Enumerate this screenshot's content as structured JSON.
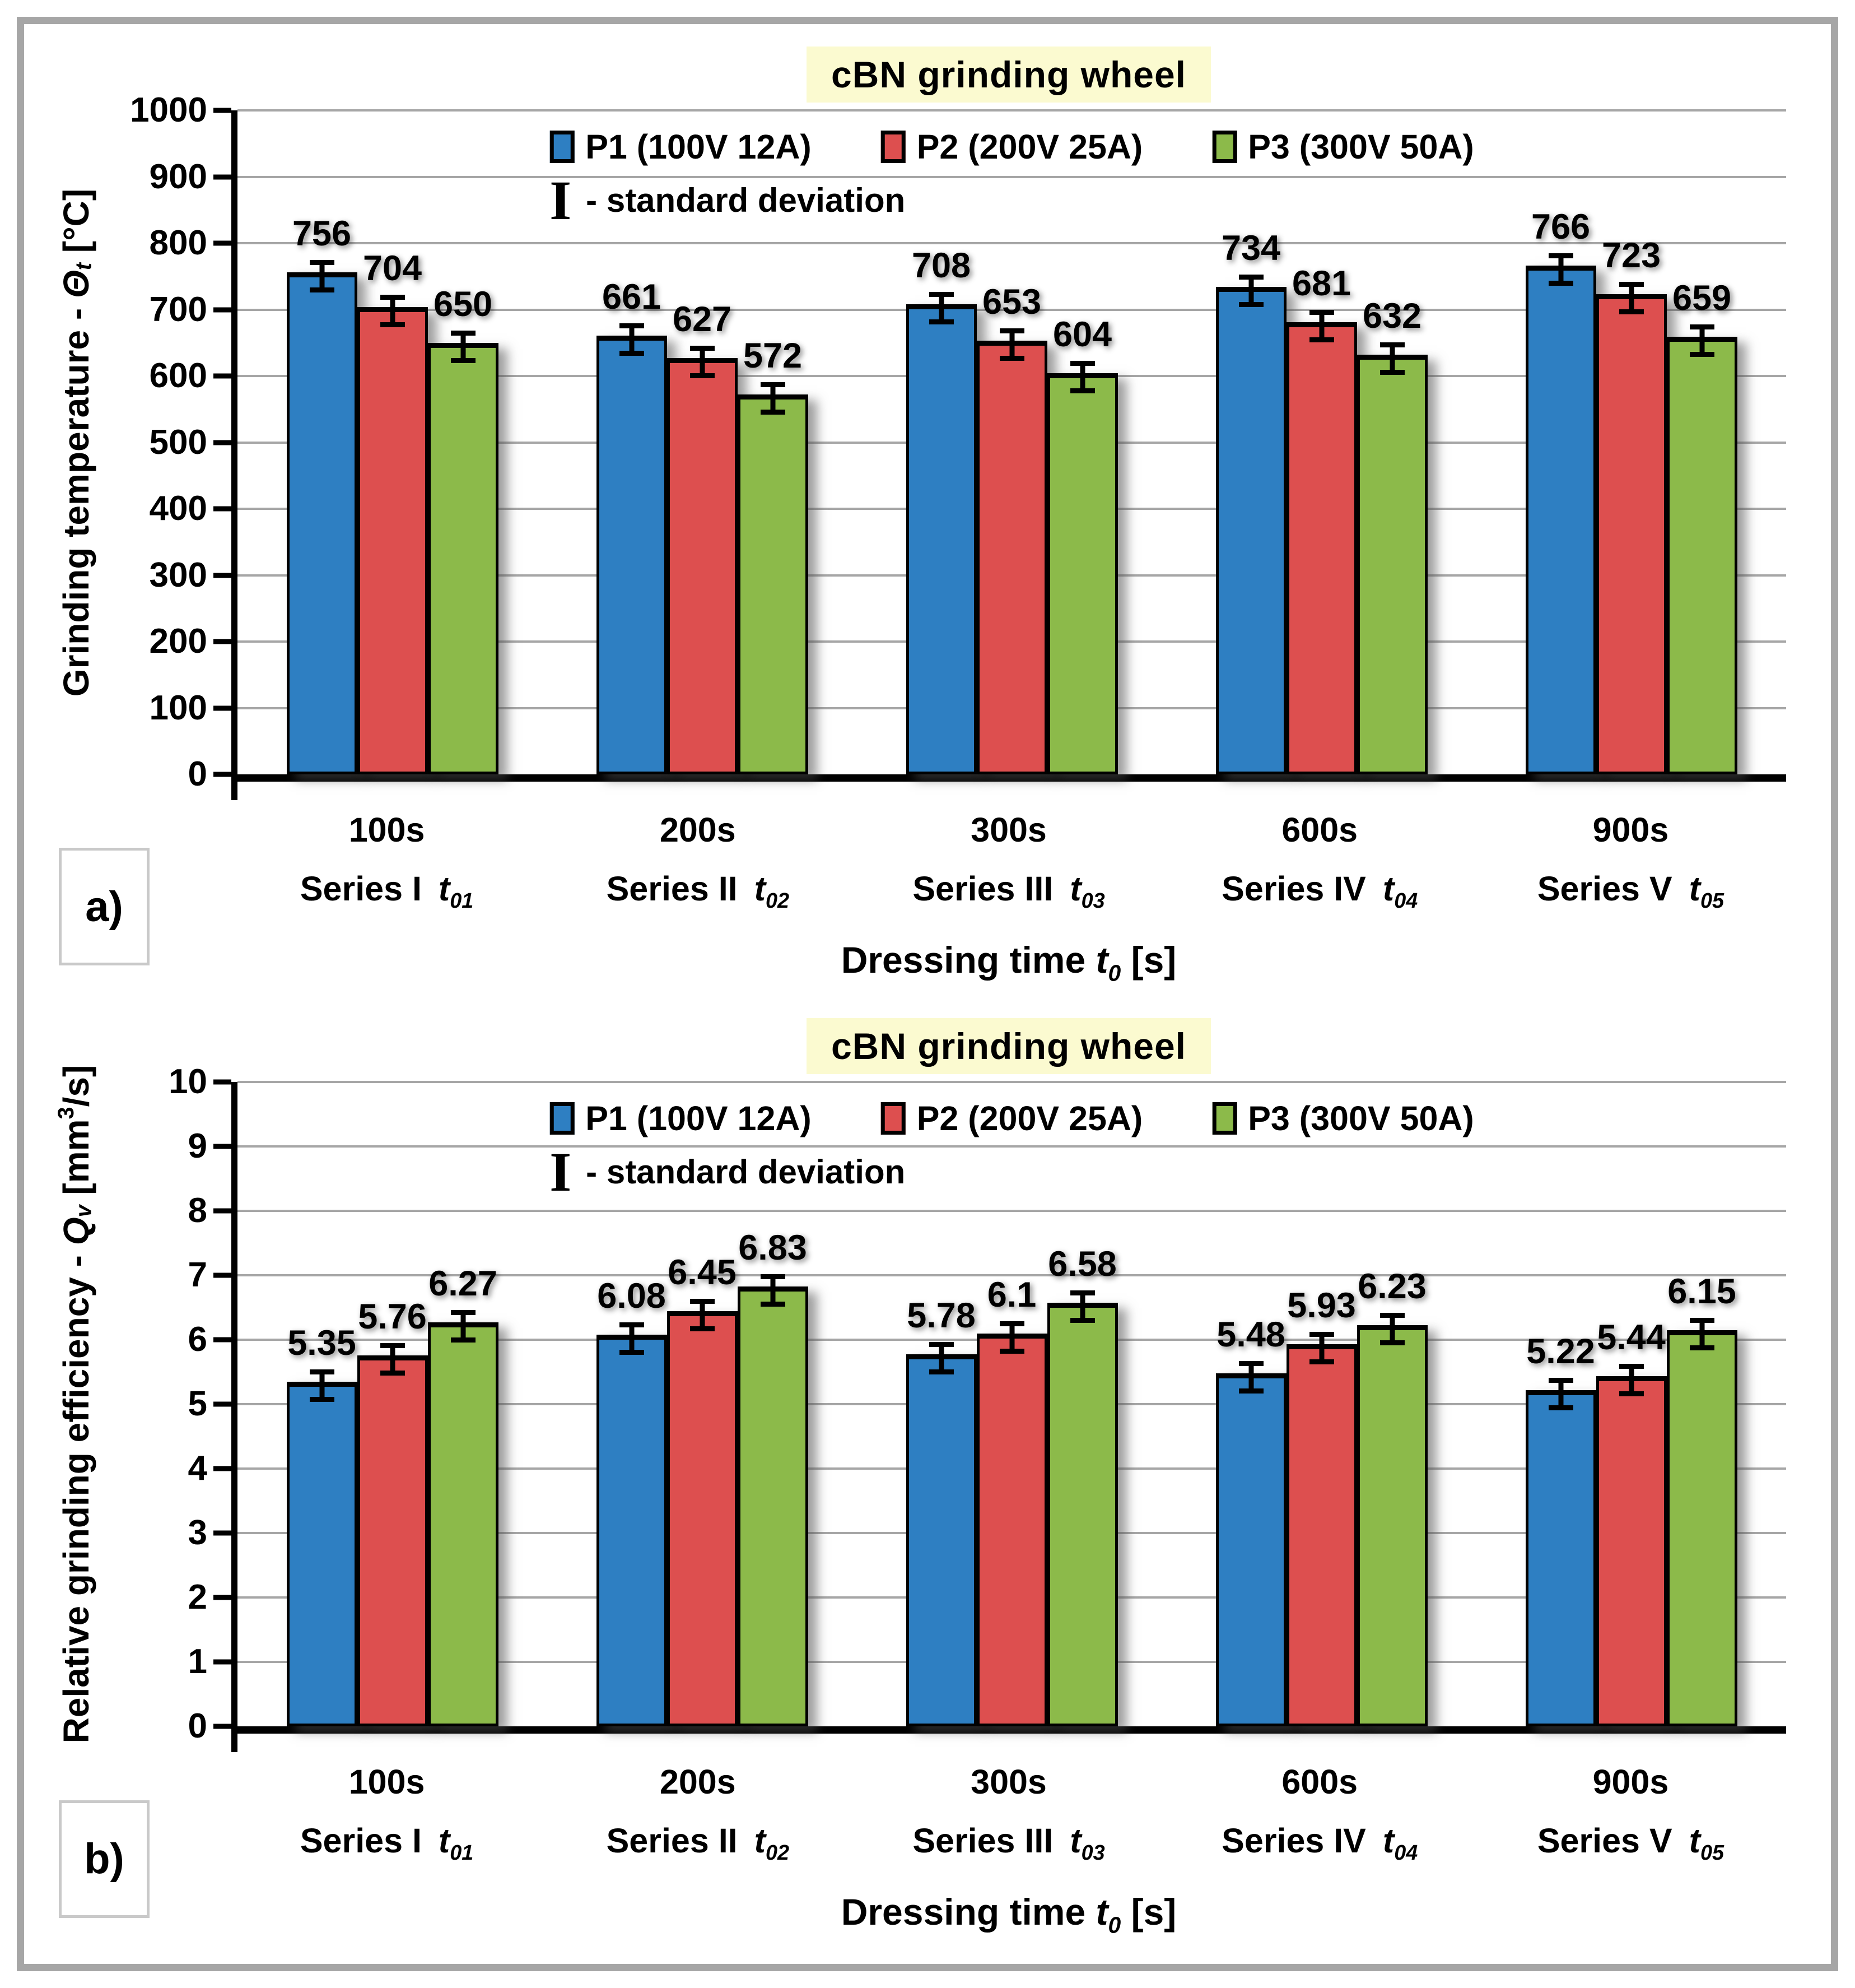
{
  "colors": {
    "frame": "#A6A6A6",
    "gridline": "#A6A6A6",
    "title_highlight": "#FBFAD0",
    "p1_blue": "#2E7FC2",
    "p2_red": "#DD4F4F",
    "p3_green": "#8CBA4A"
  },
  "chart_data": [
    {
      "panel_id": "a",
      "corner_label": "a)",
      "type": "bar",
      "title": "cBN grinding wheel",
      "title_bg": "#FBFAD0",
      "legend": {
        "items": [
          {
            "label": "P1 (100V 12A)",
            "color": "#2E7FC2"
          },
          {
            "label": "P2 (200V 25A)",
            "color": "#DD4F4F"
          },
          {
            "label": "P3 (300V 50A)",
            "color": "#8CBA4A"
          }
        ],
        "note_symbol": "I",
        "note_text": "- standard deviation"
      },
      "y_axis": {
        "label_prefix": "Grinding temperature - ",
        "symbol": "Θ",
        "symbol_sub": "t",
        "suffix_pre": " [°C]",
        "suffix_sup": "",
        "suffix_post": "",
        "min": 0,
        "max": 1000,
        "step": 100,
        "ticks": [
          1000,
          900,
          800,
          700,
          600,
          500,
          400,
          300,
          200,
          100,
          0
        ]
      },
      "x_axis": {
        "title_prefix": "Dressing time ",
        "symbol": "t",
        "symbol_sub": "0",
        "title_suffix": " [s]"
      },
      "categories": [
        {
          "time": "100s",
          "series": "Series I",
          "t_sub": "01"
        },
        {
          "time": "200s",
          "series": "Series II",
          "t_sub": "02"
        },
        {
          "time": "300s",
          "series": "Series III",
          "t_sub": "03"
        },
        {
          "time": "600s",
          "series": "Series IV",
          "t_sub": "04"
        },
        {
          "time": "900s",
          "series": "Series V",
          "t_sub": "05"
        }
      ],
      "series": [
        {
          "name": "P1 (100V 12A)",
          "color": "#2E7FC2",
          "values": [
            756,
            661,
            708,
            734,
            766
          ]
        },
        {
          "name": "P2 (200V 25A)",
          "color": "#DD4F4F",
          "values": [
            704,
            627,
            653,
            681,
            723
          ]
        },
        {
          "name": "P3 (300V 50A)",
          "color": "#8CBA4A",
          "values": [
            650,
            572,
            604,
            632,
            659
          ]
        }
      ],
      "grid": true,
      "legend_position": "top-center",
      "error_bars": "standard deviation"
    },
    {
      "panel_id": "b",
      "corner_label": "b)",
      "type": "bar",
      "title": "cBN grinding wheel",
      "title_bg": "#FBFAD0",
      "legend": {
        "items": [
          {
            "label": "P1 (100V 12A)",
            "color": "#2E7FC2"
          },
          {
            "label": "P2 (200V 25A)",
            "color": "#DD4F4F"
          },
          {
            "label": "P3 (300V 50A)",
            "color": "#8CBA4A"
          }
        ],
        "note_symbol": "I",
        "note_text": "- standard deviation"
      },
      "y_axis": {
        "label_prefix": "Relative grinding efficiency - ",
        "symbol": "Q",
        "symbol_sub": "v",
        "suffix_pre": " [mm",
        "suffix_sup": "3",
        "suffix_post": "/s]",
        "min": 0,
        "max": 10,
        "step": 1,
        "ticks": [
          10,
          9,
          8,
          7,
          6,
          5,
          4,
          3,
          2,
          1,
          0
        ]
      },
      "x_axis": {
        "title_prefix": "Dressing time ",
        "symbol": "t",
        "symbol_sub": "0",
        "title_suffix": " [s]"
      },
      "categories": [
        {
          "time": "100s",
          "series": "Series I",
          "t_sub": "01"
        },
        {
          "time": "200s",
          "series": "Series II",
          "t_sub": "02"
        },
        {
          "time": "300s",
          "series": "Series III",
          "t_sub": "03"
        },
        {
          "time": "600s",
          "series": "Series IV",
          "t_sub": "04"
        },
        {
          "time": "900s",
          "series": "Series V",
          "t_sub": "05"
        }
      ],
      "series": [
        {
          "name": "P1 (100V 12A)",
          "color": "#2E7FC2",
          "values": [
            5.35,
            6.08,
            5.78,
            5.48,
            5.22
          ]
        },
        {
          "name": "P2 (200V 25A)",
          "color": "#DD4F4F",
          "values": [
            5.76,
            6.45,
            6.1,
            5.93,
            5.44
          ]
        },
        {
          "name": "P3 (300V 50A)",
          "color": "#8CBA4A",
          "values": [
            6.27,
            6.83,
            6.58,
            6.23,
            6.15
          ]
        }
      ],
      "grid": true,
      "legend_position": "top-center",
      "error_bars": "standard deviation"
    }
  ]
}
